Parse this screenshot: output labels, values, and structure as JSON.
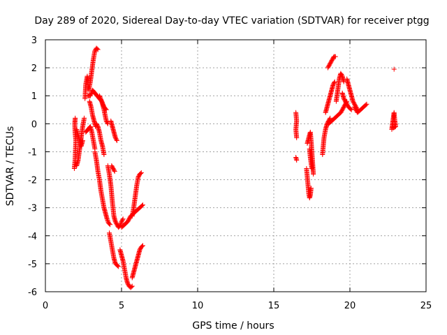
{
  "chart_data": {
    "type": "scatter",
    "title": "Day 289 of 2020, Sidereal Day-to-day VTEC variation (SDTVAR) for receiver ptgg",
    "xlabel": "GPS time / hours",
    "ylabel": "SDTVAR / TECUs",
    "xlim": [
      0,
      25
    ],
    "ylim": [
      -6,
      3
    ],
    "xticks": [
      0,
      5,
      10,
      15,
      20,
      25
    ],
    "yticks": [
      -6,
      -5,
      -4,
      -3,
      -2,
      -1,
      0,
      1,
      2,
      3
    ],
    "grid": true,
    "marker": "+",
    "color": "#ff0000",
    "series": [
      {
        "name": "SDTVAR",
        "segments": [
          [
            [
              1.9,
              -1.6
            ],
            [
              1.95,
              -1.3
            ],
            [
              2.0,
              -0.6
            ],
            [
              1.95,
              -0.3
            ],
            [
              1.93,
              0.0
            ],
            [
              1.96,
              0.2
            ]
          ],
          [
            [
              2.05,
              -1.5
            ],
            [
              2.15,
              -1.3
            ],
            [
              2.25,
              -0.9
            ],
            [
              2.35,
              -0.5
            ],
            [
              2.45,
              -0.1
            ],
            [
              2.55,
              0.2
            ]
          ],
          [
            [
              2.05,
              -0.2
            ],
            [
              2.2,
              -0.5
            ],
            [
              2.35,
              -0.8
            ],
            [
              2.45,
              -0.6
            ]
          ],
          [
            [
              2.6,
              0.9
            ],
            [
              2.65,
              1.4
            ],
            [
              2.75,
              1.7
            ],
            [
              2.85,
              1.2
            ],
            [
              2.95,
              1.5
            ],
            [
              3.05,
              1.9
            ],
            [
              3.15,
              2.3
            ],
            [
              3.25,
              2.6
            ],
            [
              3.35,
              2.7
            ],
            [
              3.45,
              2.65
            ]
          ],
          [
            [
              2.8,
              1.0
            ],
            [
              2.95,
              1.0
            ],
            [
              3.1,
              1.2
            ],
            [
              3.25,
              1.1
            ],
            [
              3.4,
              1.0
            ],
            [
              3.55,
              0.9
            ],
            [
              3.7,
              0.8
            ],
            [
              3.85,
              0.6
            ],
            [
              4.0,
              0.5
            ]
          ],
          [
            [
              2.9,
              0.8
            ],
            [
              3.0,
              0.6
            ],
            [
              3.1,
              0.3
            ],
            [
              3.2,
              0.1
            ],
            [
              3.3,
              -0.1
            ]
          ],
          [
            [
              2.65,
              -0.3
            ],
            [
              2.8,
              -0.2
            ],
            [
              2.95,
              -0.1
            ],
            [
              3.05,
              -0.3
            ],
            [
              3.15,
              -0.6
            ],
            [
              3.25,
              -0.9
            ]
          ],
          [
            [
              3.25,
              -1.0
            ],
            [
              3.35,
              -1.3
            ],
            [
              3.45,
              -1.7
            ],
            [
              3.55,
              -2.0
            ],
            [
              3.65,
              -2.4
            ],
            [
              3.75,
              -2.7
            ],
            [
              3.85,
              -3.0
            ],
            [
              3.95,
              -3.2
            ],
            [
              4.05,
              -3.4
            ],
            [
              4.15,
              -3.55
            ],
            [
              4.25,
              -3.6
            ]
          ],
          [
            [
              3.35,
              0.0
            ],
            [
              3.45,
              -0.1
            ],
            [
              3.55,
              -0.3
            ],
            [
              3.65,
              -0.6
            ],
            [
              3.75,
              -0.8
            ],
            [
              3.85,
              -1.1
            ]
          ],
          [
            [
              3.55,
              1.0
            ],
            [
              3.7,
              0.8
            ],
            [
              3.85,
              0.5
            ],
            [
              4.0,
              0.1
            ],
            [
              4.1,
              0.0
            ]
          ],
          [
            [
              4.1,
              -1.5
            ],
            [
              4.2,
              -1.8
            ],
            [
              4.3,
              -2.2
            ],
            [
              4.4,
              -2.8
            ],
            [
              4.5,
              -3.3
            ],
            [
              4.6,
              -3.5
            ],
            [
              4.7,
              -3.6
            ],
            [
              4.8,
              -3.7
            ],
            [
              4.9,
              -3.65
            ],
            [
              5.0,
              -3.5
            ],
            [
              5.1,
              -3.4
            ]
          ],
          [
            [
              4.3,
              0.1
            ],
            [
              4.4,
              -0.1
            ],
            [
              4.5,
              -0.3
            ],
            [
              4.6,
              -0.5
            ],
            [
              4.7,
              -0.6
            ]
          ],
          [
            [
              4.35,
              -1.5
            ],
            [
              4.45,
              -1.6
            ],
            [
              4.55,
              -1.7
            ]
          ],
          [
            [
              4.2,
              -3.9
            ],
            [
              4.3,
              -4.2
            ],
            [
              4.4,
              -4.5
            ],
            [
              4.5,
              -4.8
            ],
            [
              4.6,
              -5.0
            ],
            [
              4.7,
              -5.05
            ],
            [
              4.8,
              -5.1
            ]
          ],
          [
            [
              4.9,
              -4.5
            ],
            [
              5.0,
              -4.7
            ],
            [
              5.1,
              -4.9
            ],
            [
              5.2,
              -5.2
            ],
            [
              5.3,
              -5.5
            ],
            [
              5.4,
              -5.7
            ],
            [
              5.5,
              -5.8
            ],
            [
              5.6,
              -5.85
            ],
            [
              5.7,
              -5.8
            ]
          ],
          [
            [
              5.7,
              -5.5
            ],
            [
              5.8,
              -5.3
            ],
            [
              5.9,
              -5.1
            ],
            [
              6.0,
              -4.9
            ],
            [
              6.1,
              -4.7
            ],
            [
              6.2,
              -4.5
            ],
            [
              6.3,
              -4.4
            ],
            [
              6.4,
              -4.35
            ]
          ],
          [
            [
              5.0,
              -3.7
            ],
            [
              5.2,
              -3.6
            ],
            [
              5.4,
              -3.5
            ],
            [
              5.6,
              -3.3
            ],
            [
              5.8,
              -3.2
            ],
            [
              6.0,
              -3.1
            ],
            [
              6.2,
              -3.0
            ],
            [
              6.4,
              -2.9
            ]
          ],
          [
            [
              5.7,
              -3.3
            ],
            [
              5.8,
              -3.0
            ],
            [
              5.9,
              -2.6
            ],
            [
              6.0,
              -2.2
            ],
            [
              6.1,
              -1.9
            ],
            [
              6.2,
              -1.8
            ],
            [
              6.3,
              -1.75
            ]
          ],
          [
            [
              16.45,
              -1.2
            ],
            [
              16.5,
              -1.3
            ]
          ],
          [
            [
              16.5,
              -0.5
            ],
            [
              16.45,
              -0.2
            ],
            [
              16.5,
              0.1
            ],
            [
              16.45,
              0.4
            ]
          ],
          [
            [
              17.15,
              -1.6
            ],
            [
              17.2,
              -1.9
            ],
            [
              17.25,
              -2.2
            ],
            [
              17.3,
              -2.5
            ],
            [
              17.35,
              -2.65
            ],
            [
              17.4,
              -2.55
            ],
            [
              17.45,
              -2.3
            ]
          ],
          [
            [
              17.2,
              -0.7
            ],
            [
              17.3,
              -0.5
            ],
            [
              17.4,
              -0.3
            ],
            [
              17.45,
              -0.6
            ],
            [
              17.5,
              -1.0
            ],
            [
              17.55,
              -1.4
            ],
            [
              17.6,
              -1.8
            ]
          ],
          [
            [
              17.35,
              -0.9
            ],
            [
              17.4,
              -1.2
            ],
            [
              17.5,
              -1.6
            ]
          ],
          [
            [
              18.2,
              -1.1
            ],
            [
              18.25,
              -0.8
            ],
            [
              18.3,
              -0.5
            ],
            [
              18.4,
              -0.2
            ],
            [
              18.5,
              0.0
            ],
            [
              18.6,
              0.1
            ],
            [
              18.7,
              0.2
            ]
          ],
          [
            [
              18.4,
              0.4
            ],
            [
              18.5,
              0.6
            ],
            [
              18.6,
              0.8
            ],
            [
              18.7,
              1.0
            ],
            [
              18.8,
              1.2
            ],
            [
              18.9,
              1.4
            ],
            [
              19.0,
              1.5
            ]
          ],
          [
            [
              18.55,
              2.0
            ],
            [
              18.65,
              2.1
            ],
            [
              18.75,
              2.2
            ],
            [
              18.85,
              2.3
            ],
            [
              18.95,
              2.4
            ],
            [
              19.05,
              2.4
            ]
          ],
          [
            [
              18.6,
              0.0
            ],
            [
              18.8,
              0.1
            ],
            [
              19.0,
              0.2
            ],
            [
              19.2,
              0.3
            ],
            [
              19.4,
              0.4
            ],
            [
              19.6,
              0.6
            ],
            [
              19.8,
              0.8
            ]
          ],
          [
            [
              19.1,
              0.8
            ],
            [
              19.2,
              1.2
            ],
            [
              19.3,
              1.6
            ],
            [
              19.4,
              1.8
            ],
            [
              19.5,
              1.7
            ],
            [
              19.6,
              1.5
            ]
          ],
          [
            [
              19.5,
              1.1
            ],
            [
              19.6,
              0.9
            ],
            [
              19.7,
              0.8
            ],
            [
              19.8,
              0.7
            ],
            [
              19.9,
              0.6
            ],
            [
              20.0,
              0.55
            ],
            [
              20.1,
              0.5
            ]
          ],
          [
            [
              19.8,
              1.6
            ],
            [
              19.9,
              1.4
            ],
            [
              20.0,
              1.2
            ],
            [
              20.1,
              1.0
            ],
            [
              20.2,
              0.8
            ],
            [
              20.3,
              0.7
            ],
            [
              20.4,
              0.6
            ],
            [
              20.5,
              0.5
            ]
          ],
          [
            [
              20.3,
              0.6
            ],
            [
              20.5,
              0.4
            ],
            [
              20.7,
              0.5
            ],
            [
              20.9,
              0.6
            ],
            [
              21.1,
              0.7
            ]
          ],
          [
            [
              22.75,
              -0.2
            ],
            [
              22.8,
              0.0
            ],
            [
              22.85,
              0.2
            ],
            [
              22.9,
              0.4
            ],
            [
              22.95,
              0.1
            ],
            [
              23.0,
              -0.1
            ],
            [
              22.85,
              -0.15
            ]
          ],
          [
            [
              22.9,
              1.95
            ]
          ]
        ]
      }
    ]
  }
}
